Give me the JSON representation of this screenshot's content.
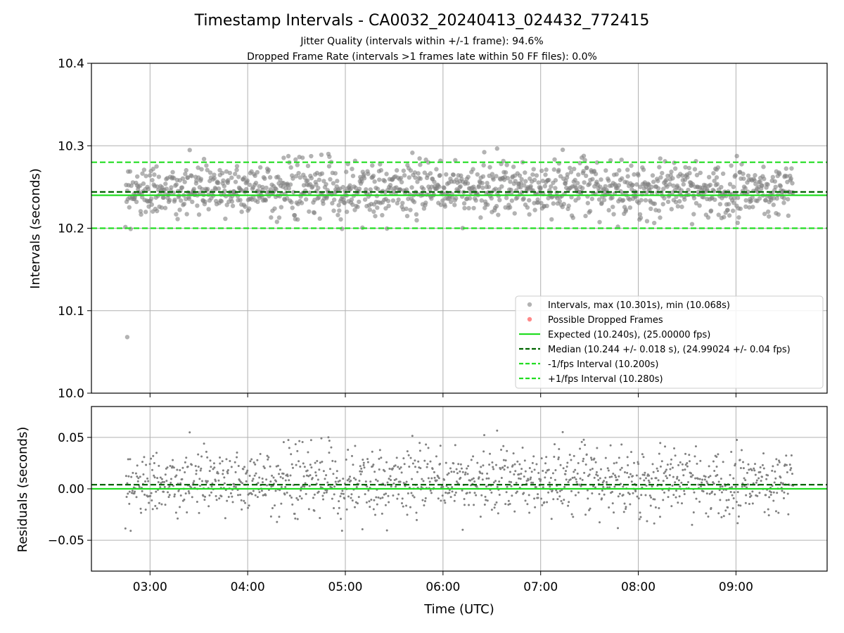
{
  "chart_data": [
    {
      "type": "scatter",
      "title": "Timestamp Intervals - CA0032_20240413_024432_772415",
      "subtitle_lines": [
        "Jitter Quality (intervals within +/-1 frame): 94.6%",
        "Dropped Frame Rate (intervals >1 frames late within 50 FF files): 0.0%"
      ],
      "ylabel": "Intervals (seconds)",
      "xlim": [
        "02:24",
        "09:56"
      ],
      "ylim": [
        10.0,
        10.4
      ],
      "yticks": [
        10.0,
        10.1,
        10.2,
        10.3,
        10.4
      ],
      "ytick_labels": [
        "10.0",
        "10.1",
        "10.2",
        "10.3",
        "10.4"
      ],
      "grid": true,
      "legend_position": "lower-right",
      "series": [
        {
          "name": "Intervals, max (10.301s), min (10.068s)",
          "kind": "points",
          "color": "#808080",
          "x_range": [
            "02:45",
            "09:35"
          ],
          "y_center": 10.247,
          "y_spread": 0.022,
          "count": 1300,
          "max": 10.301,
          "min": 10.068,
          "outliers": [
            {
              "x": "02:46",
              "y": 10.068
            }
          ]
        },
        {
          "name": "Possible Dropped Frames",
          "kind": "points",
          "color": "#ff3b3b",
          "values": []
        },
        {
          "name": "Expected (10.240s), (25.00000 fps)",
          "kind": "hline",
          "y": 10.24,
          "color": "#22dd22",
          "style": "solid"
        },
        {
          "name": "Median (10.244 +/- 0.018 s), (24.99024 +/- 0.04 fps)",
          "kind": "hline",
          "y": 10.244,
          "color": "#006400",
          "style": "dashed"
        },
        {
          "name": "-1/fps Interval (10.200s)",
          "kind": "hline",
          "y": 10.2,
          "color": "#22dd22",
          "style": "dashed"
        },
        {
          "name": "+1/fps Interval (10.280s)",
          "kind": "hline",
          "y": 10.28,
          "color": "#22dd22",
          "style": "dashed"
        }
      ]
    },
    {
      "type": "scatter",
      "xlabel": "Time (UTC)",
      "ylabel": "Residuals (seconds)",
      "xlim": [
        "02:24",
        "09:56"
      ],
      "ylim": [
        -0.08,
        0.08
      ],
      "yticks": [
        -0.05,
        0.0,
        0.05
      ],
      "ytick_labels": [
        "−0.05",
        "0.00",
        "0.05"
      ],
      "xticks": [
        "03:00",
        "04:00",
        "05:00",
        "06:00",
        "07:00",
        "08:00",
        "09:00"
      ],
      "grid": true,
      "series": [
        {
          "kind": "points",
          "color": "#808080",
          "x_range": [
            "02:45",
            "09:35"
          ],
          "y_center": 0.007,
          "y_spread": 0.022,
          "count": 1300,
          "max": 0.061,
          "min": -0.042
        },
        {
          "kind": "hline",
          "y": 0.0,
          "color": "#22dd22",
          "style": "solid"
        },
        {
          "kind": "hline",
          "y": 0.004,
          "color": "#006400",
          "style": "dashed"
        }
      ]
    }
  ]
}
